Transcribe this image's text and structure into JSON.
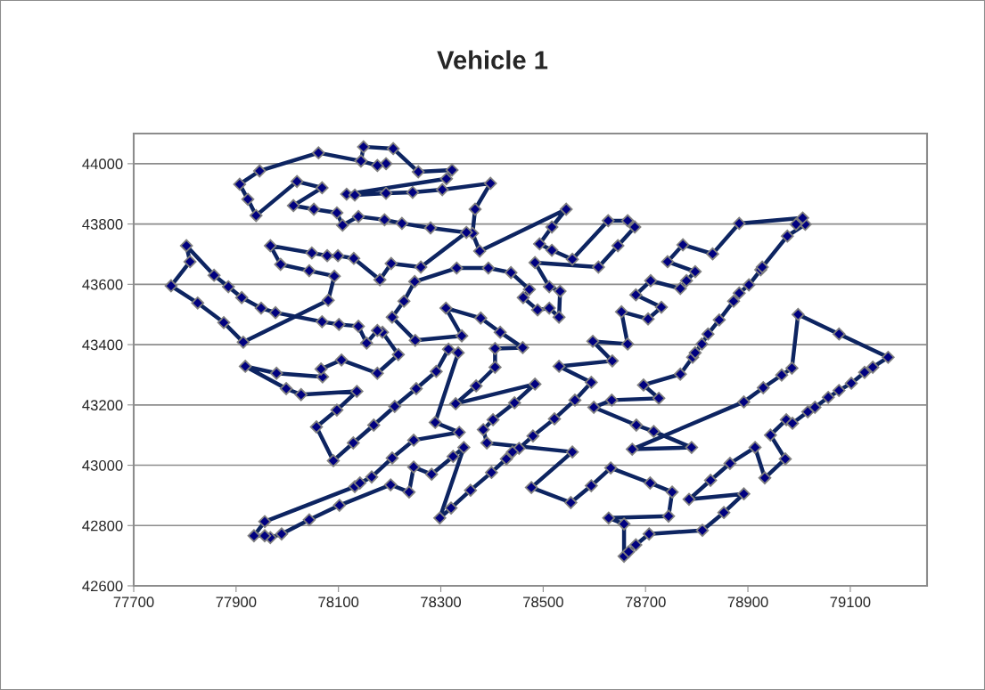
{
  "chart_data": {
    "type": "line",
    "title": "Vehicle 1",
    "xlim": [
      77700,
      79250
    ],
    "xticks": [
      77700,
      77900,
      78100,
      78300,
      78500,
      78700,
      78900,
      79100
    ],
    "ylim": [
      42600,
      44100
    ],
    "yticks": [
      42600,
      42800,
      43000,
      43200,
      43400,
      43600,
      43800,
      44000
    ],
    "grid": "y",
    "marker": "diamond",
    "line_style": "solid",
    "series": [
      {
        "color": "#0d2461",
        "x": [
          78193,
          78176,
          78144,
          78149,
          78207,
          78256,
          78322,
          78311,
          78116,
          78132,
          78193,
          78245,
          78303,
          78397,
          78367,
          78362,
          78376,
          78545,
          78517,
          78493,
          78517,
          78557,
          78627,
          78665,
          78679,
          78646,
          78608,
          78484,
          78512,
          78533,
          78531,
          78512,
          78489,
          78461,
          78473,
          78437,
          78393,
          78331,
          78249,
          78228,
          78205,
          78250,
          78341,
          78310,
          78378,
          78416,
          78460,
          78406,
          78406,
          78369,
          78329,
          78484,
          78444,
          78402,
          78383,
          78390,
          78557,
          78477,
          78554,
          78594,
          78632,
          78709,
          78752,
          78745,
          78628,
          78658,
          78658,
          78667,
          78681,
          78707,
          78811,
          78853,
          78892,
          78785,
          78827,
          78865,
          78914,
          78933,
          78973,
          78944,
          78975,
          78987,
          79017,
          79031,
          79057,
          79078,
          79102,
          79128,
          79144,
          79174,
          79078,
          78998,
          78986,
          78966,
          78930,
          78892,
          78674,
          78790,
          78716,
          78682,
          78599,
          78634,
          78726,
          78696,
          78768,
          78792,
          78797,
          78810,
          78822,
          78844,
          78872,
          78883,
          78902,
          78925,
          78928,
          78977,
          79012,
          78994,
          79007,
          78883,
          78831,
          78773,
          78743,
          78797,
          78780,
          78768,
          78710,
          78681,
          78731,
          78705,
          78653,
          78665,
          78597,
          78635,
          78531,
          78594,
          78562,
          78522,
          78480,
          78453,
          78440,
          78428,
          78399,
          78358,
          78320,
          78298,
          78345,
          78324,
          78282,
          78247,
          78238,
          78202,
          78102,
          78043,
          77989,
          77967,
          77956,
          77935,
          77956,
          78132,
          78142,
          78165,
          78205,
          78247,
          78336,
          78289,
          78334,
          78315,
          78291,
          78252,
          78210,
          78169,
          78129,
          78090,
          78057,
          78097,
          78136,
          78027,
          77998,
          77918,
          77979,
          78069,
          78066,
          78106,
          78176,
          78217,
          78186,
          78176,
          78155,
          78139,
          78101,
          78068,
          77977,
          77949,
          77911,
          77885,
          77857,
          77803,
          77810,
          77773,
          77825,
          77876,
          77914,
          78080,
          78092,
          78043,
          77987,
          77967,
          78048,
          78078,
          78099,
          78130,
          78181,
          78203,
          78261,
          78350,
          78280,
          78224,
          78190,
          78139,
          78108,
          78097,
          78052,
          78012,
          78068,
          78019,
          77939,
          77923,
          77907,
          77946,
          78061,
          78144
        ],
        "values": [
          44000,
          43994,
          44009,
          44056,
          44050,
          43973,
          43979,
          43950,
          43899,
          43896,
          43902,
          43905,
          43914,
          43935,
          43849,
          43769,
          43710,
          43849,
          43790,
          43734,
          43713,
          43683,
          43811,
          43811,
          43790,
          43728,
          43657,
          43672,
          43592,
          43577,
          43491,
          43521,
          43515,
          43556,
          43583,
          43639,
          43654,
          43654,
          43609,
          43544,
          43491,
          43414,
          43429,
          43521,
          43488,
          43441,
          43390,
          43387,
          43325,
          43263,
          43204,
          43269,
          43207,
          43151,
          43118,
          43074,
          43044,
          42926,
          42876,
          42932,
          42991,
          42941,
          42911,
          42831,
          42825,
          42805,
          42698,
          42713,
          42736,
          42772,
          42784,
          42843,
          42905,
          42887,
          42950,
          43006,
          43059,
          42958,
          43021,
          43100,
          43151,
          43139,
          43177,
          43192,
          43225,
          43248,
          43272,
          43308,
          43325,
          43358,
          43435,
          43500,
          43322,
          43299,
          43257,
          43210,
          43053,
          43059,
          43112,
          43133,
          43192,
          43216,
          43222,
          43266,
          43302,
          43358,
          43373,
          43402,
          43435,
          43482,
          43544,
          43571,
          43598,
          43648,
          43657,
          43760,
          43799,
          43799,
          43820,
          43802,
          43701,
          43731,
          43675,
          43642,
          43612,
          43586,
          43612,
          43565,
          43524,
          43485,
          43509,
          43402,
          43411,
          43346,
          43328,
          43275,
          43216,
          43154,
          43097,
          43056,
          43044,
          43021,
          42976,
          42917,
          42858,
          42825,
          43059,
          43029,
          42970,
          42994,
          42911,
          42935,
          42867,
          42819,
          42772,
          42760,
          42766,
          42766,
          42813,
          42929,
          42941,
          42961,
          43024,
          43083,
          43109,
          43142,
          43373,
          43385,
          43311,
          43254,
          43195,
          43133,
          43074,
          43015,
          43127,
          43183,
          43245,
          43234,
          43254,
          43328,
          43305,
          43293,
          43319,
          43349,
          43305,
          43367,
          43441,
          43447,
          43405,
          43461,
          43467,
          43476,
          43506,
          43521,
          43556,
          43592,
          43630,
          43728,
          43675,
          43595,
          43538,
          43473,
          43408,
          43547,
          43627,
          43645,
          43666,
          43728,
          43704,
          43695,
          43695,
          43686,
          43615,
          43669,
          43657,
          43772,
          43787,
          43802,
          43814,
          43825,
          43796,
          43837,
          43849,
          43861,
          43920,
          43941,
          43828,
          43882,
          43932,
          43976,
          44036,
          44009
        ]
      }
    ]
  }
}
